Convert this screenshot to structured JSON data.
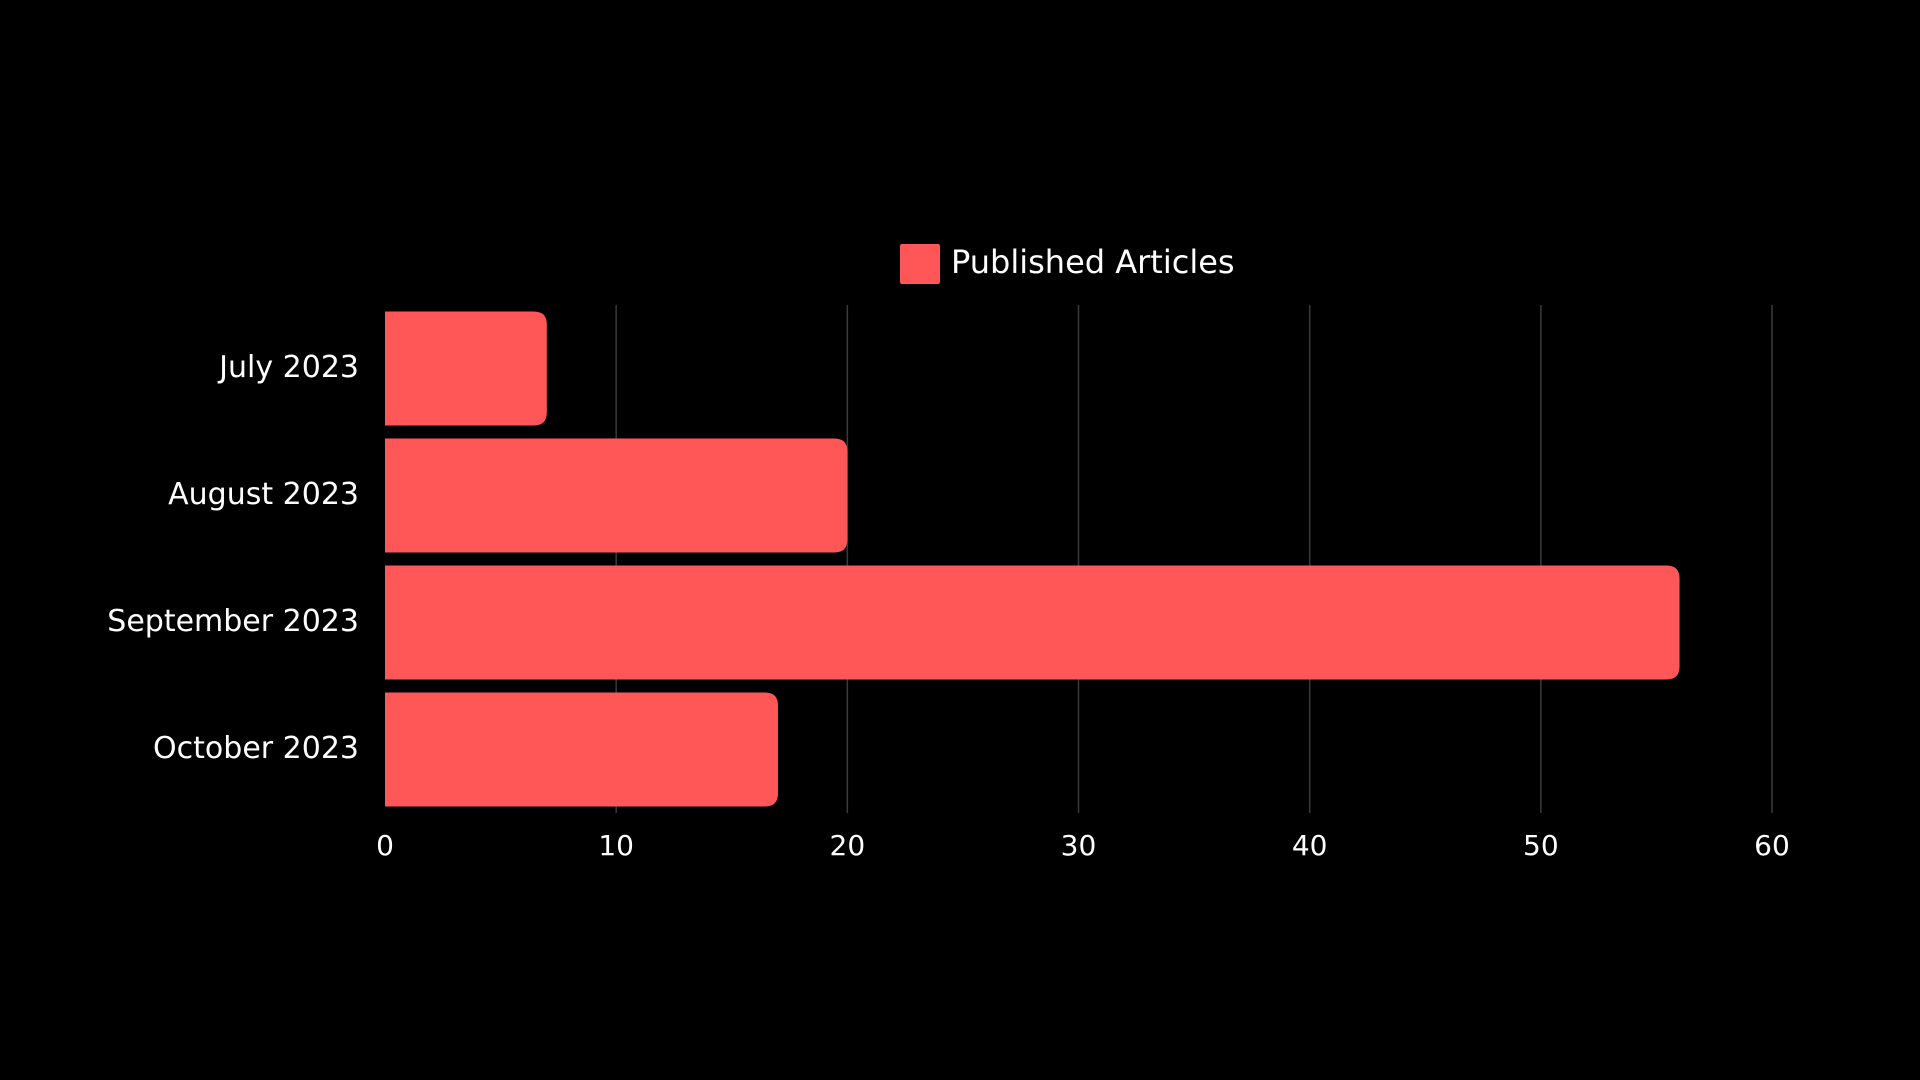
{
  "chart_data": {
    "type": "bar",
    "orientation": "horizontal",
    "categories": [
      "July 2023",
      "August 2023",
      "September 2023",
      "October 2023"
    ],
    "series": [
      {
        "name": "Published Articles",
        "values": [
          7,
          20,
          56,
          17
        ]
      }
    ],
    "x_ticks": [
      "0",
      "10",
      "20",
      "30",
      "40",
      "50",
      "60"
    ],
    "xlim": [
      0,
      60
    ],
    "grid": true,
    "legend_position": "top-center",
    "colors": {
      "background": "#000000",
      "bar": "#ff5757",
      "text": "#ffffff",
      "grid": "#3a3a3a"
    }
  }
}
